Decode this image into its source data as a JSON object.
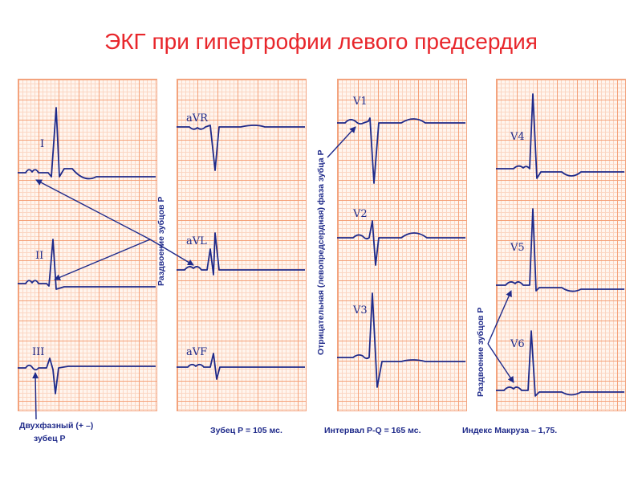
{
  "title": "ЭКГ при гипертрофии левого предсердия",
  "leads": {
    "I": "I",
    "II": "II",
    "III": "III",
    "aVR": "aVR",
    "aVL": "aVL",
    "aVF": "aVF",
    "V1": "V1",
    "V2": "V2",
    "V3": "V3",
    "V4": "V4",
    "V5": "V5",
    "V6": "V6"
  },
  "vertical_labels": {
    "splitting_p_1": "Раздвоение зубцов Р",
    "negative_phase": "Отрицательная (левопредсердная) фаза зубца Р",
    "splitting_p_2": "Раздвоение зубцов Р"
  },
  "captions": {
    "biphasic_line1": "Двухфазный (+ –)",
    "biphasic_line2": "зубец Р",
    "p_wave": "Зубец Р = 105 мс.",
    "pq_interval": "Интервал P-Q = 165 мс.",
    "macruz_index": "Индекс Макруза – 1,75."
  },
  "colors": {
    "title": "#e8262b",
    "trace": "#1f2a8a",
    "grid_major": "#f5a27a",
    "grid_minor": "#fbd6c3"
  }
}
